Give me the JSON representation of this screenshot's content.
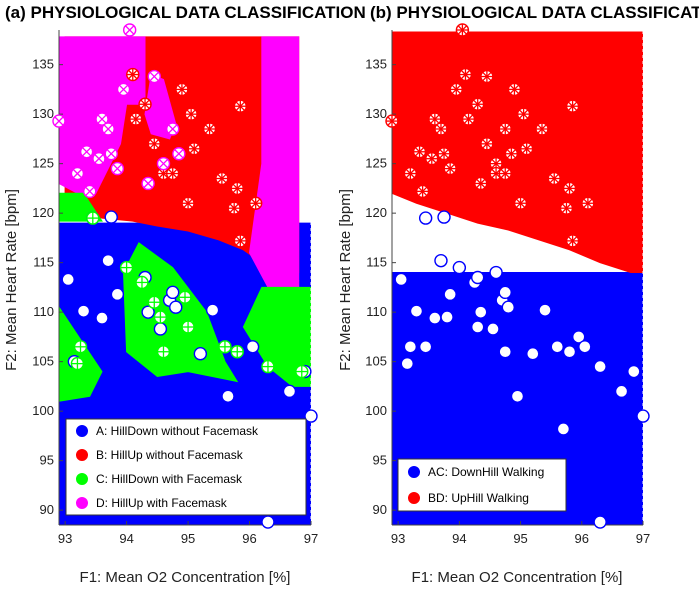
{
  "colors": {
    "A": "#0000ff",
    "B": "#ff0000",
    "C": "#00ff00",
    "D": "#ff00ff"
  },
  "chart_data": [
    {
      "type": "scatter",
      "panel": "a",
      "title": "(a) PHYSIOLOGICAL DATA CLASSIFICATION",
      "xlabel": "F1: Mean O2 Concentration [%]",
      "ylabel": "F2: Mean Heart Rate [bpm]",
      "xlim": [
        92.9,
        97.0
      ],
      "ylim": [
        88.5,
        138.5
      ],
      "xticks": [
        "93",
        "94",
        "95",
        "96",
        "97"
      ],
      "yticks": [
        "90",
        "95",
        "100",
        "105",
        "110",
        "115",
        "120",
        "125",
        "130",
        "135"
      ],
      "legend_position": "bottom-left",
      "legend": [
        {
          "label": "A: HillDown without Facemask",
          "color": "#0000ff"
        },
        {
          "label": "B: HillUp without Facemask",
          "color": "#ff0000"
        },
        {
          "label": "C: HillDown with Facemask",
          "color": "#00ff00"
        },
        {
          "label": "D: HillUp with Facemask",
          "color": "#ff00ff"
        }
      ],
      "regions": [
        {
          "class": "A",
          "color": "#0000ff",
          "polygon": [
            [
              92.9,
              88.5
            ],
            [
              97.0,
              88.5
            ],
            [
              97.0,
              119.0
            ],
            [
              92.9,
              119.0
            ]
          ]
        },
        {
          "class": "B",
          "color": "#ff0000",
          "polygon": [
            [
              93.0,
              137.8
            ],
            [
              96.8,
              137.8
            ],
            [
              96.8,
              114.0
            ],
            [
              96.3,
              114.5
            ],
            [
              95.9,
              116.3
            ],
            [
              95.5,
              117.3
            ],
            [
              95.0,
              118.2
            ],
            [
              94.5,
              118.7
            ],
            [
              94.1,
              119.2
            ],
            [
              93.6,
              119.5
            ],
            [
              93.0,
              120.0
            ]
          ]
        },
        {
          "class": "D",
          "color": "#ff00ff",
          "polygon": [
            [
              92.9,
              137.8
            ],
            [
              94.3,
              137.8
            ],
            [
              94.3,
              131.0
            ],
            [
              94.0,
              131.0
            ],
            [
              93.9,
              127.0
            ],
            [
              93.5,
              122.0
            ],
            [
              93.2,
              122.0
            ],
            [
              92.9,
              123.0
            ]
          ]
        },
        {
          "class": "D",
          "color": "#ff00ff",
          "polygon": [
            [
              94.4,
              134.0
            ],
            [
              94.6,
              133.5
            ],
            [
              94.8,
              129.0
            ],
            [
              94.7,
              127.5
            ],
            [
              94.4,
              128.0
            ],
            [
              94.3,
              130.0
            ]
          ]
        },
        {
          "class": "D",
          "color": "#ff00ff",
          "polygon": [
            [
              96.2,
              137.8
            ],
            [
              96.8,
              137.8
            ],
            [
              96.8,
              112.5
            ],
            [
              96.3,
              112.5
            ],
            [
              96.0,
              116.0
            ],
            [
              96.2,
              125.0
            ]
          ]
        },
        {
          "class": "C",
          "color": "#00ff00",
          "polygon": [
            [
              92.9,
              122.0
            ],
            [
              93.3,
              122.0
            ],
            [
              93.6,
              119.2
            ],
            [
              92.9,
              119.2
            ]
          ]
        },
        {
          "class": "C",
          "color": "#00ff00",
          "polygon": [
            [
              92.9,
              110.5
            ],
            [
              93.6,
              104.0
            ],
            [
              93.4,
              101.5
            ],
            [
              92.9,
              101.0
            ]
          ]
        },
        {
          "class": "C",
          "color": "#00ff00",
          "polygon": [
            [
              93.95,
              114.0
            ],
            [
              94.2,
              117.0
            ],
            [
              94.75,
              114.5
            ],
            [
              95.3,
              110.0
            ],
            [
              95.6,
              105.0
            ],
            [
              95.8,
              103.0
            ],
            [
              95.0,
              104.0
            ],
            [
              94.5,
              103.5
            ],
            [
              94.0,
              106.0
            ]
          ]
        },
        {
          "class": "C",
          "color": "#00ff00",
          "polygon": [
            [
              95.9,
              108.5
            ],
            [
              96.2,
              112.5
            ],
            [
              97.0,
              112.5
            ],
            [
              97.0,
              102.5
            ],
            [
              96.7,
              102.5
            ],
            [
              96.3,
              104.5
            ]
          ]
        }
      ],
      "series": [
        {
          "class": "A",
          "marker": "circle-open",
          "points": [
            [
              93.05,
              113.3
            ],
            [
              93.3,
              110.1
            ],
            [
              93.45,
              119.5
            ],
            [
              93.6,
              109.4
            ],
            [
              93.7,
              115.2
            ],
            [
              93.75,
              119.6
            ],
            [
              93.85,
              111.8
            ],
            [
              94.3,
              113.5
            ],
            [
              94.35,
              110.0
            ],
            [
              94.55,
              108.3
            ],
            [
              94.7,
              111.2
            ],
            [
              94.75,
              112.0
            ],
            [
              94.8,
              110.5
            ],
            [
              95.2,
              105.8
            ],
            [
              95.4,
              110.2
            ],
            [
              95.7,
              98.2
            ],
            [
              96.3,
              88.8
            ],
            [
              96.65,
              102.0
            ],
            [
              97.0,
              99.5
            ],
            [
              93.15,
              105.0
            ],
            [
              95.65,
              101.5
            ],
            [
              96.9,
              104.0
            ],
            [
              96.05,
              106.5
            ]
          ]
        },
        {
          "class": "B",
          "marker": "circle-asterisk",
          "points": [
            [
              94.1,
              134.0
            ],
            [
              94.15,
              129.5
            ],
            [
              94.3,
              131.0
            ],
            [
              94.45,
              127.0
            ],
            [
              94.9,
              132.5
            ],
            [
              95.05,
              130.0
            ],
            [
              95.1,
              126.5
            ],
            [
              95.35,
              128.5
            ],
            [
              95.55,
              123.5
            ],
            [
              95.75,
              120.5
            ],
            [
              95.8,
              122.5
            ],
            [
              95.85,
              130.8
            ],
            [
              95.85,
              117.2
            ],
            [
              96.1,
              121.0
            ],
            [
              94.6,
              124.0
            ],
            [
              94.75,
              124.0
            ],
            [
              95.0,
              121.0
            ]
          ]
        },
        {
          "class": "C",
          "marker": "circle-plus",
          "points": [
            [
              93.45,
              119.5
            ],
            [
              93.25,
              106.5
            ],
            [
              93.2,
              104.8
            ],
            [
              94.0,
              114.5
            ],
            [
              94.25,
              113.0
            ],
            [
              94.45,
              111.0
            ],
            [
              94.55,
              109.5
            ],
            [
              94.6,
              106.0
            ],
            [
              94.95,
              111.5
            ],
            [
              95.0,
              108.5
            ],
            [
              95.6,
              106.5
            ],
            [
              95.8,
              106.0
            ],
            [
              96.3,
              104.5
            ],
            [
              96.85,
              104.0
            ]
          ]
        },
        {
          "class": "D",
          "marker": "circle-x",
          "points": [
            [
              92.9,
              129.3
            ],
            [
              94.05,
              138.5
            ],
            [
              93.2,
              124.0
            ],
            [
              93.35,
              126.2
            ],
            [
              93.4,
              122.2
            ],
            [
              93.55,
              125.5
            ],
            [
              93.6,
              129.5
            ],
            [
              93.7,
              128.5
            ],
            [
              93.75,
              126.0
            ],
            [
              93.85,
              124.5
            ],
            [
              93.95,
              132.5
            ],
            [
              94.35,
              123.0
            ],
            [
              94.45,
              133.8
            ],
            [
              94.6,
              125.0
            ],
            [
              94.75,
              128.5
            ],
            [
              94.85,
              126.0
            ]
          ]
        }
      ]
    },
    {
      "type": "scatter",
      "panel": "b",
      "title": "(b) PHYSIOLOGICAL DATA CLASSIFICATION",
      "xlabel": "F1: Mean O2 Concentration [%]",
      "ylabel": "F2: Mean Heart Rate [bpm]",
      "xlim": [
        92.9,
        97.0
      ],
      "ylim": [
        88.5,
        138.5
      ],
      "xticks": [
        "93",
        "94",
        "95",
        "96",
        "97"
      ],
      "yticks": [
        "90",
        "95",
        "100",
        "105",
        "110",
        "115",
        "120",
        "125",
        "130",
        "135"
      ],
      "legend_position": "bottom-left",
      "legend": [
        {
          "label": "AC: DownHill Walking",
          "color": "#0000ff"
        },
        {
          "label": "BD: UpHill Walking",
          "color": "#ff0000"
        }
      ],
      "regions": [
        {
          "class": "AC",
          "color": "#0000ff",
          "polygon": [
            [
              92.9,
              88.5
            ],
            [
              97.0,
              88.5
            ],
            [
              97.0,
              114.0
            ],
            [
              92.9,
              114.0
            ]
          ]
        },
        {
          "class": "BD",
          "color": "#ff0000",
          "polygon": [
            [
              92.9,
              138.3
            ],
            [
              97.0,
              138.3
            ],
            [
              97.0,
              114.0
            ],
            [
              96.8,
              114.0
            ],
            [
              96.3,
              115.0
            ],
            [
              95.8,
              116.3
            ],
            [
              95.3,
              117.3
            ],
            [
              94.8,
              118.3
            ],
            [
              94.3,
              119.0
            ],
            [
              93.8,
              120.0
            ],
            [
              93.3,
              121.0
            ],
            [
              92.9,
              122.0
            ]
          ]
        }
      ],
      "series": [
        {
          "class": "AC",
          "marker": "circle-open",
          "points": [
            [
              93.05,
              113.3
            ],
            [
              93.2,
              106.5
            ],
            [
              93.15,
              104.8
            ],
            [
              93.3,
              110.1
            ],
            [
              93.45,
              119.5
            ],
            [
              93.6,
              109.4
            ],
            [
              93.7,
              115.2
            ],
            [
              93.75,
              119.6
            ],
            [
              93.85,
              111.8
            ],
            [
              93.8,
              109.5
            ],
            [
              94.0,
              114.5
            ],
            [
              94.25,
              113.0
            ],
            [
              94.3,
              113.5
            ],
            [
              94.35,
              110.0
            ],
            [
              94.3,
              108.5
            ],
            [
              94.55,
              108.3
            ],
            [
              94.6,
              114.0
            ],
            [
              94.7,
              111.2
            ],
            [
              94.75,
              112.0
            ],
            [
              94.8,
              110.5
            ],
            [
              94.75,
              106.0
            ],
            [
              94.95,
              101.5
            ],
            [
              95.2,
              105.8
            ],
            [
              95.4,
              110.2
            ],
            [
              95.6,
              106.5
            ],
            [
              95.7,
              98.2
            ],
            [
              95.8,
              106.0
            ],
            [
              95.95,
              107.5
            ],
            [
              96.05,
              106.5
            ],
            [
              96.3,
              104.5
            ],
            [
              96.3,
              88.8
            ],
            [
              96.65,
              102.0
            ],
            [
              96.85,
              104.0
            ],
            [
              97.0,
              99.5
            ],
            [
              93.45,
              106.5
            ]
          ]
        },
        {
          "class": "BD",
          "marker": "circle-asterisk",
          "points": [
            [
              92.9,
              129.3
            ],
            [
              94.05,
              138.5
            ],
            [
              93.2,
              124.0
            ],
            [
              93.35,
              126.2
            ],
            [
              93.4,
              122.2
            ],
            [
              93.55,
              125.5
            ],
            [
              93.6,
              129.5
            ],
            [
              93.7,
              128.5
            ],
            [
              93.75,
              126.0
            ],
            [
              93.85,
              124.5
            ],
            [
              93.95,
              132.5
            ],
            [
              94.1,
              134.0
            ],
            [
              94.15,
              129.5
            ],
            [
              94.3,
              131.0
            ],
            [
              94.35,
              123.0
            ],
            [
              94.45,
              133.8
            ],
            [
              94.45,
              127.0
            ],
            [
              94.6,
              125.0
            ],
            [
              94.6,
              124.0
            ],
            [
              94.75,
              128.5
            ],
            [
              94.75,
              124.0
            ],
            [
              94.85,
              126.0
            ],
            [
              94.9,
              132.5
            ],
            [
              95.0,
              121.0
            ],
            [
              95.05,
              130.0
            ],
            [
              95.1,
              126.5
            ],
            [
              95.35,
              128.5
            ],
            [
              95.55,
              123.5
            ],
            [
              95.75,
              120.5
            ],
            [
              95.8,
              122.5
            ],
            [
              95.85,
              130.8
            ],
            [
              95.85,
              117.2
            ],
            [
              96.1,
              121.0
            ]
          ]
        }
      ]
    }
  ]
}
